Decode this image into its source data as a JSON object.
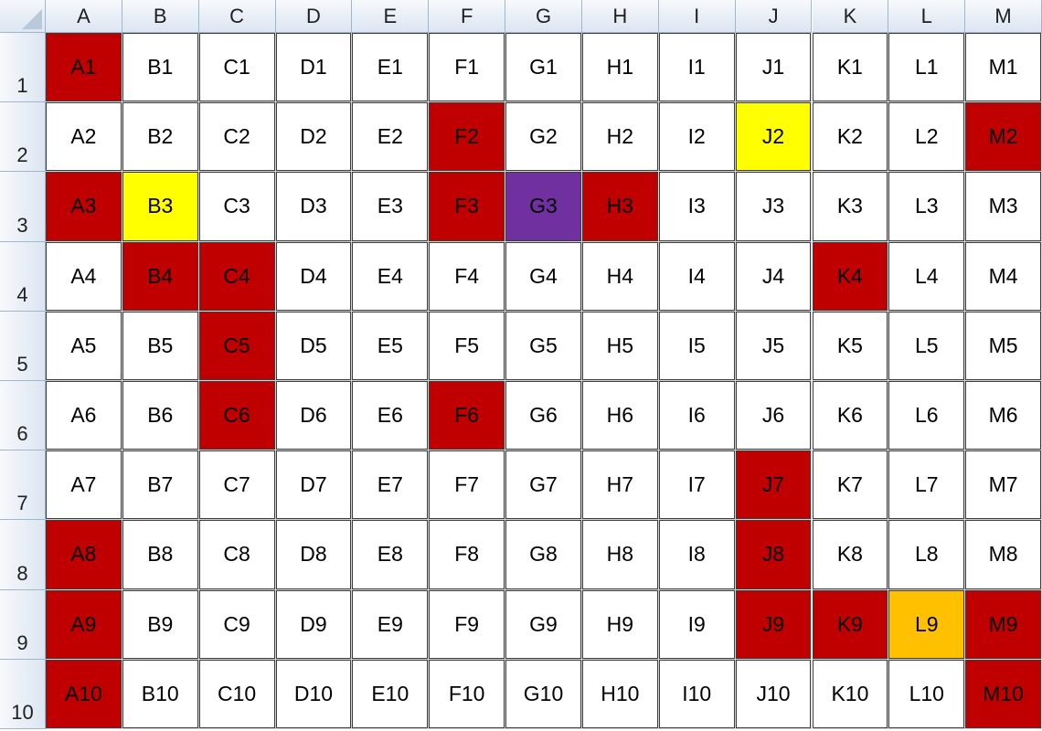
{
  "columns": [
    "A",
    "B",
    "C",
    "D",
    "E",
    "F",
    "G",
    "H",
    "I",
    "J",
    "K",
    "L",
    "M"
  ],
  "rows": [
    "1",
    "2",
    "3",
    "4",
    "5",
    "6",
    "7",
    "8",
    "9",
    "10"
  ],
  "palette": {
    "red": "#c00000",
    "yellow": "#ffff00",
    "purple": "#7030a0",
    "orange": "#ffc000",
    "white": "#ffffff"
  },
  "fills": {
    "A1": "red",
    "F2": "red",
    "J2": "yellow",
    "M2": "red",
    "A3": "red",
    "B3": "yellow",
    "F3": "red",
    "G3": "purple",
    "H3": "red",
    "B4": "red",
    "C4": "red",
    "K4": "red",
    "C5": "red",
    "C6": "red",
    "F6": "red",
    "J7": "red",
    "A8": "red",
    "J8": "red",
    "A9": "red",
    "J9": "red",
    "K9": "red",
    "L9": "orange",
    "M9": "red",
    "A10": "red",
    "M10": "red"
  },
  "cells": [
    [
      "A1",
      "B1",
      "C1",
      "D1",
      "E1",
      "F1",
      "G1",
      "H1",
      "I1",
      "J1",
      "K1",
      "L1",
      "M1"
    ],
    [
      "A2",
      "B2",
      "C2",
      "D2",
      "E2",
      "F2",
      "G2",
      "H2",
      "I2",
      "J2",
      "K2",
      "L2",
      "M2"
    ],
    [
      "A3",
      "B3",
      "C3",
      "D3",
      "E3",
      "F3",
      "G3",
      "H3",
      "I3",
      "J3",
      "K3",
      "L3",
      "M3"
    ],
    [
      "A4",
      "B4",
      "C4",
      "D4",
      "E4",
      "F4",
      "G4",
      "H4",
      "I4",
      "J4",
      "K4",
      "L4",
      "M4"
    ],
    [
      "A5",
      "B5",
      "C5",
      "D5",
      "E5",
      "F5",
      "G5",
      "H5",
      "I5",
      "J5",
      "K5",
      "L5",
      "M5"
    ],
    [
      "A6",
      "B6",
      "C6",
      "D6",
      "E6",
      "F6",
      "G6",
      "H6",
      "I6",
      "J6",
      "K6",
      "L6",
      "M6"
    ],
    [
      "A7",
      "B7",
      "C7",
      "D7",
      "E7",
      "F7",
      "G7",
      "H7",
      "I7",
      "J7",
      "K7",
      "L7",
      "M7"
    ],
    [
      "A8",
      "B8",
      "C8",
      "D8",
      "E8",
      "F8",
      "G8",
      "H8",
      "I8",
      "J8",
      "K8",
      "L8",
      "M8"
    ],
    [
      "A9",
      "B9",
      "C9",
      "D9",
      "E9",
      "F9",
      "G9",
      "H9",
      "I9",
      "J9",
      "K9",
      "L9",
      "M9"
    ],
    [
      "A10",
      "B10",
      "C10",
      "D10",
      "E10",
      "F10",
      "G10",
      "H10",
      "I10",
      "J10",
      "K10",
      "L10",
      "M10"
    ]
  ]
}
